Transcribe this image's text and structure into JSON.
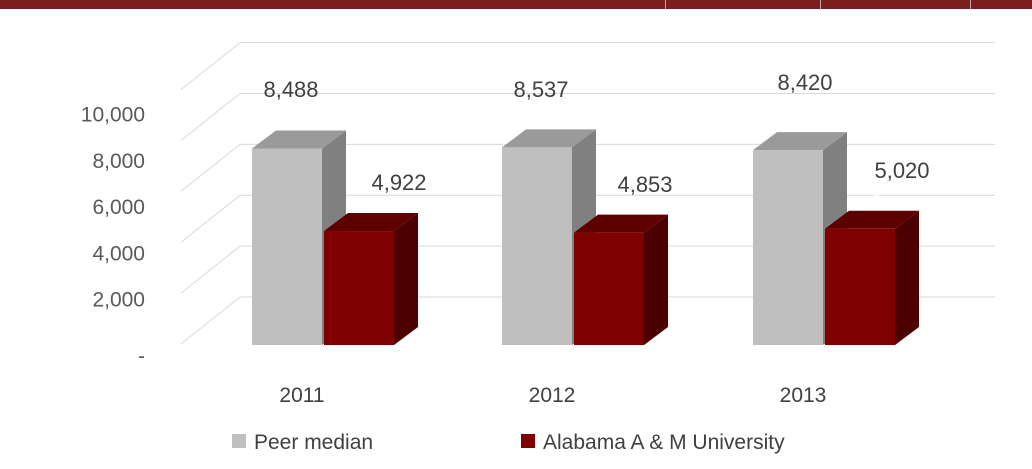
{
  "chart_data": {
    "type": "bar",
    "categories": [
      "2011",
      "2012",
      "2013"
    ],
    "series": [
      {
        "name": "Peer median",
        "values": [
          8488,
          8537,
          8420
        ],
        "labels": [
          "8,488",
          "8,537",
          "8,420"
        ],
        "color": "#bfbfbf",
        "side_color": "#808080",
        "top_color": "#9a9a9a"
      },
      {
        "name": "Alabama A & M University",
        "values": [
          4922,
          4853,
          5020
        ],
        "labels": [
          "4,922",
          "4,853",
          "5,020"
        ],
        "color": "#7f0000",
        "side_color": "#4d0000",
        "top_color": "#5e0000"
      }
    ],
    "ylim": [
      0,
      10000
    ],
    "y_ticks": [
      0,
      2000,
      4000,
      6000,
      8000,
      10000
    ],
    "y_tick_labels": [
      "-",
      "2,000",
      "4,000",
      "6,000",
      "8,000",
      "10,000"
    ],
    "grid": true,
    "legend_position": "bottom",
    "bar_style": "3d"
  }
}
